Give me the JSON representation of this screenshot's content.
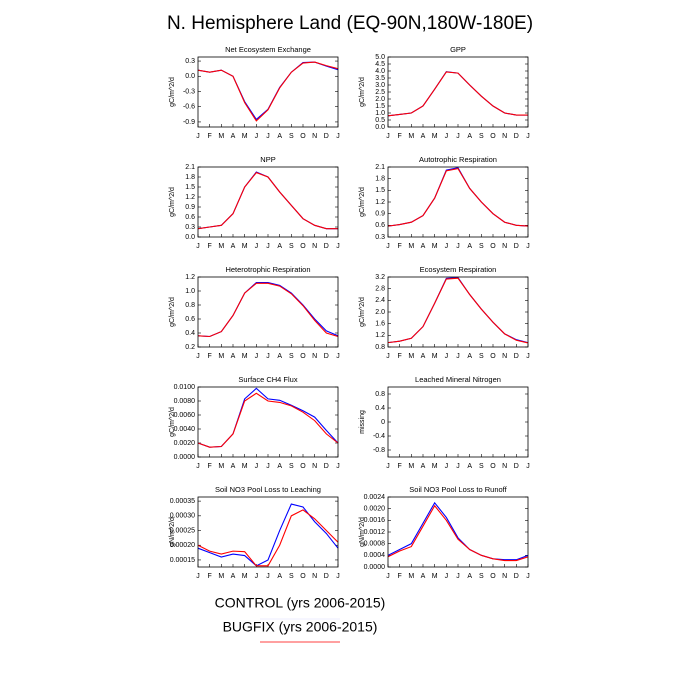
{
  "title": "N. Hemisphere Land (EQ-90N,180W-180E)",
  "legend": [
    {
      "name": "CONTROL (yrs 2006-2015)",
      "color": "#0000ff"
    },
    {
      "name": "BUGFIX (yrs 2006-2015)",
      "color": "#ff0000"
    }
  ],
  "chart_data": [
    {
      "type": "line",
      "title": "Net Ecosystem Exchange",
      "ylabel": "gC/m^2/d",
      "categories": [
        "J",
        "F",
        "M",
        "A",
        "M",
        "J",
        "J",
        "A",
        "S",
        "O",
        "N",
        "D",
        "J"
      ],
      "ylim": [
        -1.0,
        0.38
      ],
      "yticks": [
        0.3,
        {
          "value": 0,
          "label": "0.0"
        },
        -0.3,
        -0.6,
        -0.9
      ],
      "series": [
        {
          "values": [
            0.12,
            0.08,
            0.12,
            0.0,
            -0.5,
            -0.85,
            -0.65,
            -0.22,
            0.08,
            0.27,
            0.28,
            0.2,
            0.13
          ]
        },
        {
          "values": [
            0.12,
            0.08,
            0.12,
            0.0,
            -0.52,
            -0.88,
            -0.66,
            -0.23,
            0.08,
            0.26,
            0.28,
            0.21,
            0.15
          ]
        }
      ]
    },
    {
      "type": "line",
      "title": "GPP",
      "ylabel": "gC/m^2/d",
      "categories": [
        "J",
        "F",
        "M",
        "A",
        "M",
        "J",
        "J",
        "A",
        "S",
        "O",
        "N",
        "D",
        "J"
      ],
      "ylim": [
        0,
        5
      ],
      "yticks": [
        {
          "value": 0,
          "label": "0.0"
        },
        0.5,
        {
          "value": 1,
          "label": "1.0"
        },
        1.5,
        {
          "value": 2,
          "label": "2.0"
        },
        2.5,
        {
          "value": 3,
          "label": "3.0"
        },
        3.5,
        {
          "value": 4,
          "label": "4.0"
        },
        4.5,
        {
          "value": 5,
          "label": "5.0"
        }
      ],
      "series": [
        {
          "values": [
            0.8,
            0.9,
            1.0,
            1.5,
            2.7,
            3.95,
            3.85,
            3.0,
            2.2,
            1.5,
            1.0,
            0.85,
            0.85
          ]
        },
        {
          "values": [
            0.8,
            0.9,
            1.0,
            1.5,
            2.7,
            3.93,
            3.85,
            3.0,
            2.2,
            1.5,
            1.0,
            0.85,
            0.85
          ]
        }
      ]
    },
    {
      "type": "line",
      "title": "NPP",
      "ylabel": "gC/m^2/d",
      "categories": [
        "J",
        "F",
        "M",
        "A",
        "M",
        "J",
        "J",
        "A",
        "S",
        "O",
        "N",
        "D",
        "J"
      ],
      "ylim": [
        0,
        2.1
      ],
      "yticks": [
        {
          "value": 0,
          "label": "0.0"
        },
        0.3,
        0.6,
        0.9,
        1.2,
        1.5,
        1.8,
        2.1
      ],
      "series": [
        {
          "values": [
            0.25,
            0.3,
            0.35,
            0.7,
            1.5,
            1.95,
            1.8,
            1.35,
            0.95,
            0.55,
            0.35,
            0.25,
            0.25
          ]
        },
        {
          "values": [
            0.25,
            0.3,
            0.35,
            0.7,
            1.5,
            1.93,
            1.8,
            1.35,
            0.95,
            0.55,
            0.35,
            0.25,
            0.25
          ]
        }
      ]
    },
    {
      "type": "line",
      "title": "Autotrophic Respiration",
      "ylabel": "gC/m^2/d",
      "categories": [
        "J",
        "F",
        "M",
        "A",
        "M",
        "J",
        "J",
        "A",
        "S",
        "O",
        "N",
        "D",
        "J"
      ],
      "ylim": [
        0.3,
        2.1
      ],
      "yticks": [
        0.3,
        0.6,
        0.9,
        1.2,
        1.5,
        1.8,
        2.1
      ],
      "series": [
        {
          "values": [
            0.58,
            0.62,
            0.68,
            0.85,
            1.3,
            2.02,
            2.08,
            1.55,
            1.2,
            0.9,
            0.68,
            0.6,
            0.58
          ]
        },
        {
          "values": [
            0.58,
            0.62,
            0.68,
            0.85,
            1.3,
            2.0,
            2.06,
            1.55,
            1.2,
            0.9,
            0.68,
            0.6,
            0.58
          ]
        }
      ]
    },
    {
      "type": "line",
      "title": "Heterotrophic Respiration",
      "ylabel": "gC/m^2/d",
      "categories": [
        "J",
        "F",
        "M",
        "A",
        "M",
        "J",
        "J",
        "A",
        "S",
        "O",
        "N",
        "D",
        "J"
      ],
      "ylim": [
        0.2,
        1.2
      ],
      "yticks": [
        0.2,
        0.4,
        0.6,
        0.8,
        {
          "value": 1,
          "label": "1.0"
        },
        1.2
      ],
      "series": [
        {
          "values": [
            0.36,
            0.35,
            0.42,
            0.65,
            0.97,
            1.12,
            1.12,
            1.08,
            0.97,
            0.8,
            0.6,
            0.43,
            0.36
          ]
        },
        {
          "values": [
            0.36,
            0.35,
            0.42,
            0.65,
            0.97,
            1.11,
            1.11,
            1.07,
            0.96,
            0.79,
            0.58,
            0.4,
            0.35
          ]
        }
      ]
    },
    {
      "type": "line",
      "title": "Ecosystem Respiration",
      "ylabel": "gC/m^2/d",
      "categories": [
        "J",
        "F",
        "M",
        "A",
        "M",
        "J",
        "J",
        "A",
        "S",
        "O",
        "N",
        "D",
        "J"
      ],
      "ylim": [
        0.8,
        3.2
      ],
      "yticks": [
        0.8,
        1.2,
        1.6,
        {
          "value": 2,
          "label": "2.0"
        },
        2.4,
        2.8,
        3.2
      ],
      "series": [
        {
          "values": [
            0.95,
            1.0,
            1.1,
            1.5,
            2.3,
            3.15,
            3.18,
            2.6,
            2.1,
            1.65,
            1.25,
            1.05,
            0.95
          ]
        },
        {
          "values": [
            0.95,
            1.0,
            1.1,
            1.5,
            2.3,
            3.13,
            3.16,
            2.6,
            2.1,
            1.65,
            1.25,
            1.03,
            0.94
          ]
        }
      ]
    },
    {
      "type": "line",
      "title": "Surface CH4 Flux",
      "ylabel": "gC/m^2/d",
      "categories": [
        "J",
        "F",
        "M",
        "A",
        "M",
        "J",
        "J",
        "A",
        "S",
        "O",
        "N",
        "D",
        "J"
      ],
      "ylim": [
        0,
        0.01
      ],
      "yticks": [
        {
          "value": 0,
          "label": "0.0000"
        },
        {
          "value": 0.002,
          "label": "0.0020"
        },
        {
          "value": 0.004,
          "label": "0.0040"
        },
        {
          "value": 0.006,
          "label": "0.0060"
        },
        {
          "value": 0.008,
          "label": "0.0080"
        },
        {
          "value": 0.01,
          "label": "0.0100"
        }
      ],
      "series": [
        {
          "values": [
            0.002,
            0.0014,
            0.0015,
            0.0033,
            0.0083,
            0.0098,
            0.0083,
            0.0081,
            0.0074,
            0.0066,
            0.0057,
            0.0038,
            0.002
          ]
        },
        {
          "values": [
            0.002,
            0.0014,
            0.0015,
            0.0033,
            0.008,
            0.0091,
            0.008,
            0.0078,
            0.0073,
            0.0064,
            0.0052,
            0.0033,
            0.002
          ]
        }
      ]
    },
    {
      "type": "line",
      "title": "Leached Mineral Nitrogen",
      "ylabel": "missing",
      "categories": [
        "J",
        "F",
        "M",
        "A",
        "M",
        "J",
        "J",
        "A",
        "S",
        "O",
        "N",
        "D",
        "J"
      ],
      "ylim": [
        -1.0,
        1.0
      ],
      "yticks": [
        0.8,
        0.4,
        0,
        -0.4,
        -0.8
      ],
      "series": []
    },
    {
      "type": "line",
      "title": "Soil NO3 Pool Loss to Leaching",
      "ylabel": "gN/m^2/d",
      "categories": [
        "J",
        "F",
        "M",
        "A",
        "M",
        "J",
        "J",
        "A",
        "S",
        "O",
        "N",
        "D",
        "J"
      ],
      "ylim": [
        0.000126,
        0.000364
      ],
      "yticks": [
        0.00015,
        {
          "value": 0.0002,
          "label": "0.00020"
        },
        0.00025,
        {
          "value": 0.0003,
          "label": "0.00030"
        },
        0.00035
      ],
      "series": [
        {
          "values": [
            0.00019,
            0.000175,
            0.00016,
            0.00017,
            0.000165,
            0.00013,
            0.00015,
            0.00025,
            0.00034,
            0.00033,
            0.00028,
            0.00024,
            0.00019
          ]
        },
        {
          "values": [
            0.0002,
            0.00018,
            0.00017,
            0.00018,
            0.000178,
            0.00013,
            0.00013,
            0.0002,
            0.0003,
            0.00032,
            0.00029,
            0.00025,
            0.00021
          ]
        }
      ]
    },
    {
      "type": "line",
      "title": "Soil NO3 Pool Loss to Runoff",
      "ylabel": "gN/m^2/d",
      "categories": [
        "J",
        "F",
        "M",
        "A",
        "M",
        "J",
        "J",
        "A",
        "S",
        "O",
        "N",
        "D",
        "J"
      ],
      "ylim": [
        0,
        0.0024
      ],
      "yticks": [
        {
          "value": 0,
          "label": "0.0000"
        },
        {
          "value": 0.0004,
          "label": "0.0004"
        },
        {
          "value": 0.0008,
          "label": "0.0008"
        },
        {
          "value": 0.0012,
          "label": "0.0012"
        },
        {
          "value": 0.0016,
          "label": "0.0016"
        },
        {
          "value": 0.002,
          "label": "0.0020"
        },
        {
          "value": 0.0024,
          "label": "0.0024"
        }
      ],
      "series": [
        {
          "values": [
            0.0004,
            0.0006,
            0.0008,
            0.0015,
            0.0022,
            0.0017,
            0.001,
            0.0006,
            0.0004,
            0.00028,
            0.00025,
            0.00025,
            0.0004
          ]
        },
        {
          "values": [
            0.00035,
            0.00055,
            0.0007,
            0.0014,
            0.0021,
            0.0016,
            0.00095,
            0.0006,
            0.0004,
            0.00028,
            0.00022,
            0.00022,
            0.00035
          ]
        }
      ]
    }
  ]
}
